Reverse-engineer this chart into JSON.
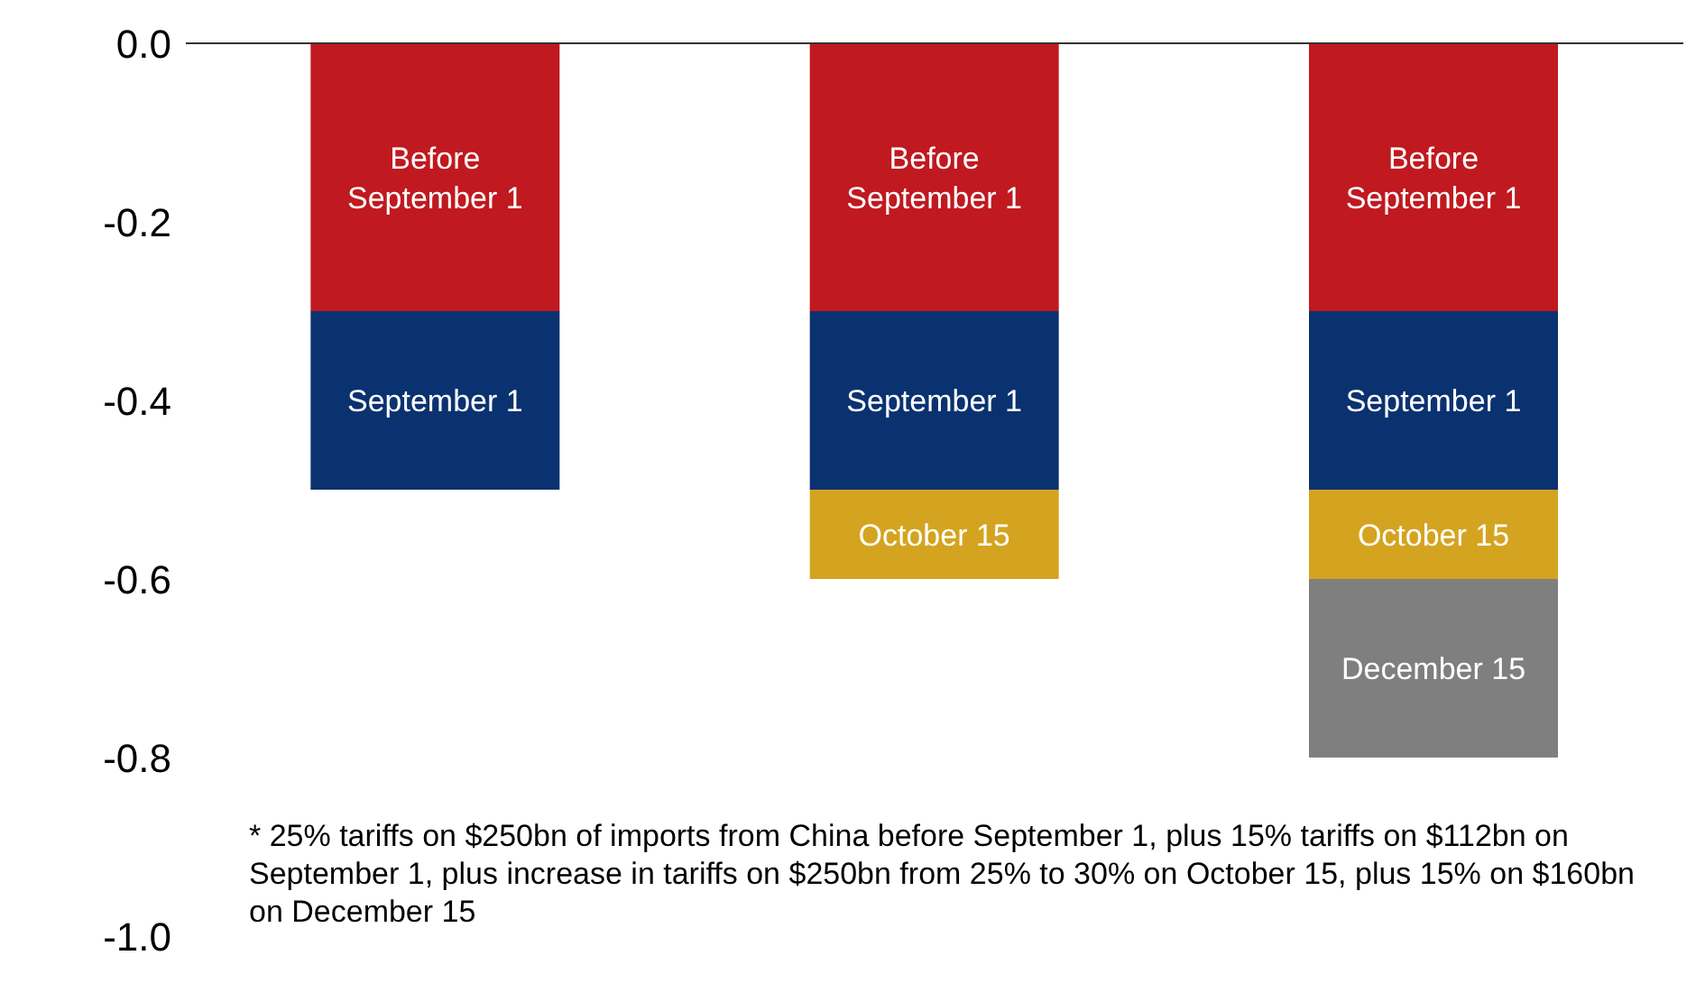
{
  "chart_data": {
    "type": "bar",
    "stacked": true,
    "categories": [
      null,
      null,
      null
    ],
    "series": [
      {
        "name": "Before September 1",
        "color": "#c0191f",
        "values": [
          -0.3,
          -0.3,
          -0.3
        ]
      },
      {
        "name": "September 1",
        "color": "#0b3270",
        "values": [
          -0.2,
          -0.2,
          -0.2
        ]
      },
      {
        "name": "October 15",
        "color": "#d4a420",
        "values": [
          null,
          -0.1,
          -0.1
        ]
      },
      {
        "name": "December 15",
        "color": "#7f7f7f",
        "values": [
          null,
          null,
          -0.2
        ]
      }
    ],
    "ylim": [
      -1.0,
      0.0
    ],
    "yticks": [
      {
        "value": 0,
        "label": "0.0"
      },
      -0.2,
      -0.4,
      -0.6,
      -0.8,
      {
        "value": -1,
        "label": "-1.0"
      }
    ],
    "tick_labels": "y",
    "grid": false,
    "legend": false,
    "annotations": [
      "* 25% tariffs on $250bn of imports from China before September 1, plus 15% tariffs on $112bn on September 1, plus increase in tariffs on $250bn from 25% to 30% on October 15, plus 15% on $160bn on December 15"
    ]
  }
}
